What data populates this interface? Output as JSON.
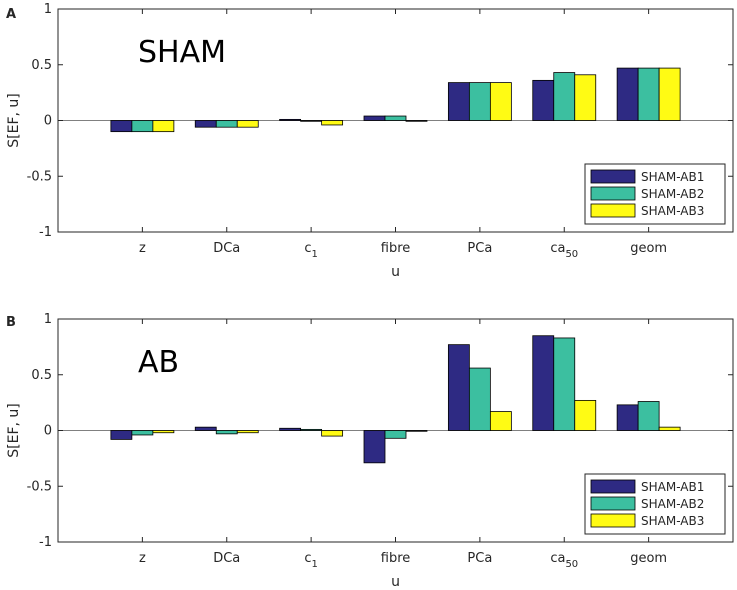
{
  "colors": {
    "series1": "#2e2a83",
    "series2": "#3cbfa0",
    "series3": "#fffb14",
    "axis": "#262626",
    "zero_line": "#808080"
  },
  "chart_data": [
    {
      "type": "bar",
      "panel_label": "A",
      "title": "SHAM",
      "xlabel": "u",
      "ylabel": "S[EF, u]",
      "ylim": [
        -1,
        1
      ],
      "yticks": [
        "-1",
        "-0.5",
        "0",
        "0.5",
        "1"
      ],
      "categories": [
        {
          "base": "z",
          "sub": ""
        },
        {
          "base": "DCa",
          "sub": ""
        },
        {
          "base": "c",
          "sub": "1"
        },
        {
          "base": "fibre",
          "sub": ""
        },
        {
          "base": "PCa",
          "sub": ""
        },
        {
          "base": "ca",
          "sub": "50"
        },
        {
          "base": "geom",
          "sub": ""
        }
      ],
      "series": [
        {
          "name": "SHAM-AB1",
          "values": [
            -0.1,
            -0.06,
            0.01,
            0.04,
            0.34,
            0.36,
            0.47
          ]
        },
        {
          "name": "SHAM-AB2",
          "values": [
            -0.1,
            -0.06,
            0.0,
            0.04,
            0.34,
            0.43,
            0.47
          ]
        },
        {
          "name": "SHAM-AB3",
          "values": [
            -0.1,
            -0.06,
            -0.04,
            0.0,
            0.34,
            0.41,
            0.47
          ]
        }
      ],
      "legend_position": "bottom-right"
    },
    {
      "type": "bar",
      "panel_label": "B",
      "title": "AB",
      "xlabel": "u",
      "ylabel": "S[EF, u]",
      "ylim": [
        -1,
        1
      ],
      "yticks": [
        "-1",
        "-0.5",
        "0",
        "0.5",
        "1"
      ],
      "categories": [
        {
          "base": "z",
          "sub": ""
        },
        {
          "base": "DCa",
          "sub": ""
        },
        {
          "base": "c",
          "sub": "1"
        },
        {
          "base": "fibre",
          "sub": ""
        },
        {
          "base": "PCa",
          "sub": ""
        },
        {
          "base": "ca",
          "sub": "50"
        },
        {
          "base": "geom",
          "sub": ""
        }
      ],
      "series": [
        {
          "name": "SHAM-AB1",
          "values": [
            -0.08,
            0.03,
            0.02,
            -0.29,
            0.77,
            0.85,
            0.23
          ]
        },
        {
          "name": "SHAM-AB2",
          "values": [
            -0.04,
            -0.03,
            0.01,
            -0.07,
            0.56,
            0.83,
            0.26
          ]
        },
        {
          "name": "SHAM-AB3",
          "values": [
            -0.02,
            -0.02,
            -0.05,
            0.0,
            0.17,
            0.27,
            0.03
          ]
        }
      ],
      "legend_position": "bottom-right"
    }
  ]
}
